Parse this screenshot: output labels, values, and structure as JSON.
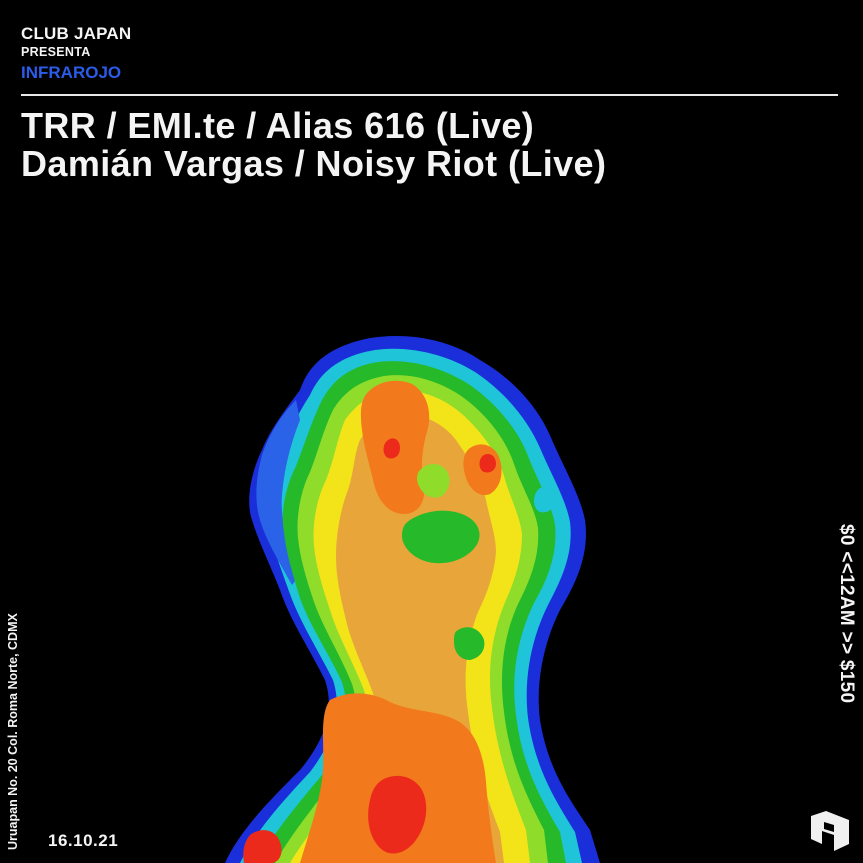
{
  "header": {
    "club_name": "CLUB JAPAN",
    "presenta": "PRESENTA",
    "event_name": "INFRAROJO"
  },
  "lineup": {
    "line1": "TRR / EMI.te / Alias 616 (Live)",
    "line2": "Damián Vargas / Noisy Riot (Live)"
  },
  "sidebar": {
    "address": "Uruapan No. 20 Col. Roma Norte, CDMX",
    "prices": "$0 <<12AM >> $150"
  },
  "footer": {
    "date": "16.10.21"
  },
  "colors": {
    "background": "#000000",
    "text": "#f4f4f4",
    "accent": "#2b5ce8"
  },
  "images": {
    "thermal_figure": "thermal-portrait-illustration",
    "logo": "venue-logo-icon"
  }
}
